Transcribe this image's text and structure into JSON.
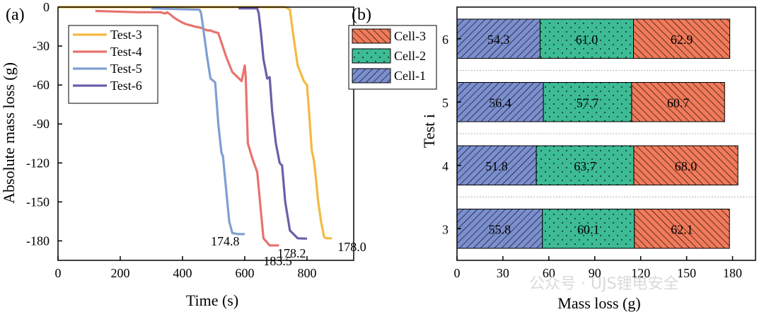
{
  "watermark": "公众号 · UJS锂电安全",
  "colors": {
    "test3": "#f4b942",
    "test4": "#e8736f",
    "test5": "#7f9fd3",
    "test6": "#6a5fa8",
    "cell1": "#7b8fcf",
    "cell2": "#3dbb95",
    "cell3": "#f07a5a"
  },
  "chart_data": [
    {
      "panel": "(a)",
      "type": "line",
      "xlabel": "Time (s)",
      "ylabel": "Absolute mass loss (g)",
      "xlim": [
        0,
        950
      ],
      "ylim": [
        -195,
        0
      ],
      "xticks": [
        0,
        200,
        400,
        600,
        800
      ],
      "yticks": [
        0,
        -30,
        -60,
        -90,
        -120,
        -150,
        -180
      ],
      "legend_position": "top-left",
      "series": [
        {
          "name": "Test-3",
          "color": "#f4b942",
          "final_label": "178.0",
          "x": [
            0,
            730,
            745,
            755,
            770,
            790,
            800,
            808,
            815,
            822,
            828,
            835,
            845,
            855,
            862,
            870,
            880
          ],
          "y": [
            0,
            0,
            -2,
            -20,
            -45,
            -57,
            -60,
            -85,
            -110,
            -118,
            -130,
            -148,
            -165,
            -177,
            -178,
            -178,
            -178
          ]
        },
        {
          "name": "Test-4",
          "color": "#e8736f",
          "final_label": "183.5",
          "x": [
            120,
            260,
            330,
            345,
            350,
            362,
            372,
            385,
            400,
            410,
            440,
            460,
            470,
            480,
            490,
            500,
            515,
            540,
            560,
            590,
            600,
            603,
            610,
            625,
            640,
            660,
            680,
            710
          ],
          "y": [
            -3,
            -4,
            -4,
            -5,
            -4,
            -6,
            -8,
            -10,
            -12,
            -13,
            -15,
            -16,
            -17,
            -18,
            -18,
            -19,
            -20,
            -38,
            -50,
            -57,
            -45,
            -53,
            -105,
            -117,
            -127,
            -178,
            -183.5,
            -183.5
          ],
          "legacy_note": ""
        },
        {
          "name": "Test-5",
          "color": "#7f9fd3",
          "final_label": "174.8",
          "x": [
            300,
            455,
            460,
            480,
            490,
            500,
            505,
            515,
            525,
            530,
            540,
            550,
            560,
            580,
            600
          ],
          "y": [
            -1,
            -2,
            -5,
            -40,
            -55,
            -57,
            -58,
            -90,
            -112,
            -115,
            -140,
            -165,
            -174,
            -174.8,
            -174.8
          ]
        },
        {
          "name": "Test-6",
          "color": "#6a5fa8",
          "final_label": "178.2",
          "x": [
            580,
            640,
            645,
            652,
            660,
            672,
            680,
            688,
            700,
            712,
            720,
            730,
            745,
            770,
            790,
            800
          ],
          "y": [
            -1,
            -1,
            -5,
            -20,
            -40,
            -55,
            -54,
            -80,
            -105,
            -120,
            -122,
            -150,
            -172,
            -178,
            -178.2,
            -178.2
          ]
        }
      ]
    },
    {
      "panel": "(b)",
      "type": "bar",
      "orientation": "horizontal",
      "stacked": true,
      "xlabel": "Mass loss (g)",
      "ylabel": "Test i",
      "xlim": [
        0,
        195
      ],
      "xticks": [
        0,
        30,
        60,
        90,
        120,
        150,
        180
      ],
      "categories": [
        "3",
        "4",
        "5",
        "6"
      ],
      "legend_position": "top-left",
      "series": [
        {
          "name": "Cell-1",
          "color": "#7b8fcf",
          "pattern": "hatch-forward",
          "values": [
            55.8,
            51.8,
            56.4,
            54.3
          ],
          "labels": [
            "55.8",
            "51.8",
            "56.4",
            "54.3"
          ]
        },
        {
          "name": "Cell-2",
          "color": "#3dbb95",
          "pattern": "dots",
          "values": [
            60.1,
            63.7,
            57.7,
            61.0
          ],
          "labels": [
            "60.1",
            "63.7",
            "57.7",
            "61.0"
          ]
        },
        {
          "name": "Cell-3",
          "color": "#f07a5a",
          "pattern": "hatch-back",
          "values": [
            62.1,
            68.0,
            60.7,
            62.9
          ],
          "labels": [
            "62.1",
            "68.0",
            "60.7",
            "62.9"
          ]
        }
      ],
      "legend_order": [
        "Cell-3",
        "Cell-2",
        "Cell-1"
      ]
    }
  ]
}
